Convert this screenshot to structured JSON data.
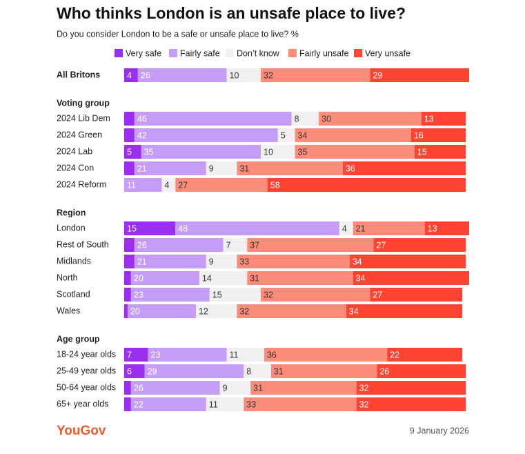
{
  "title": "Who thinks London is an unsafe place to live?",
  "subtitle": "Do you consider London to be a safe or unsafe place to live? %",
  "source": "YouGov",
  "date": "9 January 2026",
  "chart_data": [
    {
      "type": "bar",
      "stacked": true,
      "xlim": [
        0,
        101
      ],
      "categories": [
        "All Britons"
      ],
      "series": [
        {
          "name": "Very safe",
          "color": "#9a2ff0",
          "values": [
            4
          ]
        },
        {
          "name": "Fairly safe",
          "color": "#c59cf6",
          "values": [
            26
          ]
        },
        {
          "name": "Don’t know",
          "color": "#f0f0f0",
          "values": [
            10
          ]
        },
        {
          "name": "Fairly unsafe",
          "color": "#fc8c7a",
          "values": [
            32
          ]
        },
        {
          "name": "Very unsafe",
          "color": "#ff4532",
          "values": [
            29
          ]
        }
      ]
    },
    {
      "type": "bar",
      "stacked": true,
      "xlim": [
        0,
        101
      ],
      "title": "Voting group",
      "categories": [
        "2024 Lib Dem",
        "2024 Green",
        "2024 Lab",
        "2024 Con",
        "2024 Reform"
      ],
      "series": [
        {
          "name": "Very safe",
          "color": "#9a2ff0",
          "values": [
            3,
            3,
            5,
            3,
            0
          ]
        },
        {
          "name": "Fairly safe",
          "color": "#c59cf6",
          "values": [
            46,
            42,
            35,
            21,
            11
          ]
        },
        {
          "name": "Don’t know",
          "color": "#f0f0f0",
          "values": [
            8,
            5,
            10,
            9,
            4
          ]
        },
        {
          "name": "Fairly unsafe",
          "color": "#fc8c7a",
          "values": [
            30,
            34,
            35,
            31,
            27
          ]
        },
        {
          "name": "Very unsafe",
          "color": "#ff4532",
          "values": [
            13,
            16,
            15,
            36,
            58
          ]
        }
      ]
    },
    {
      "type": "bar",
      "stacked": true,
      "xlim": [
        0,
        101
      ],
      "title": "Region",
      "categories": [
        "London",
        "Rest of South",
        "Midlands",
        "North",
        "Scotland",
        "Wales"
      ],
      "series": [
        {
          "name": "Very safe",
          "color": "#9a2ff0",
          "values": [
            15,
            3,
            3,
            2,
            2,
            1
          ]
        },
        {
          "name": "Fairly safe",
          "color": "#c59cf6",
          "values": [
            48,
            26,
            21,
            20,
            23,
            20
          ]
        },
        {
          "name": "Don’t know",
          "color": "#f0f0f0",
          "values": [
            4,
            7,
            9,
            14,
            15,
            12
          ]
        },
        {
          "name": "Fairly unsafe",
          "color": "#fc8c7a",
          "values": [
            21,
            37,
            33,
            31,
            32,
            32
          ]
        },
        {
          "name": "Very unsafe",
          "color": "#ff4532",
          "values": [
            13,
            27,
            34,
            34,
            27,
            34
          ]
        }
      ]
    },
    {
      "type": "bar",
      "stacked": true,
      "xlim": [
        0,
        101
      ],
      "title": "Age group",
      "categories": [
        "18-24 year olds",
        "25-49 year olds",
        "50-64 year olds",
        "65+ year olds"
      ],
      "series": [
        {
          "name": "Very safe",
          "color": "#9a2ff0",
          "values": [
            7,
            6,
            2,
            2
          ]
        },
        {
          "name": "Fairly safe",
          "color": "#c59cf6",
          "values": [
            23,
            29,
            26,
            22
          ]
        },
        {
          "name": "Don’t know",
          "color": "#f0f0f0",
          "values": [
            11,
            8,
            9,
            11
          ]
        },
        {
          "name": "Fairly unsafe",
          "color": "#fc8c7a",
          "values": [
            36,
            31,
            31,
            33
          ]
        },
        {
          "name": "Very unsafe",
          "color": "#ff4532",
          "values": [
            22,
            26,
            32,
            32
          ]
        }
      ]
    }
  ]
}
